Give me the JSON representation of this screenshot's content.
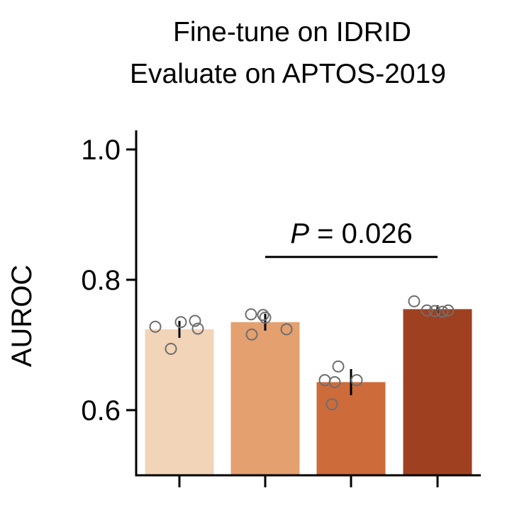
{
  "chart_data": {
    "type": "bar",
    "title_lines": [
      "Fine-tune on IDRID",
      "Evaluate on APTOS-2019"
    ],
    "ylabel": "AUROC",
    "xlabel": "",
    "ylim": [
      0.5,
      1.03
    ],
    "yticks": [
      0.6,
      0.8,
      1.0
    ],
    "ytick_labels": [
      "0.6",
      "0.8",
      "1.0"
    ],
    "categories": [
      "",
      "",
      "",
      ""
    ],
    "values": [
      0.724,
      0.735,
      0.643,
      0.755
    ],
    "colors": [
      "#f2d4b8",
      "#e4a06f",
      "#cd6b3b",
      "#9f4121"
    ],
    "error": [
      [
        0.711,
        0.737
      ],
      [
        0.722,
        0.748
      ],
      [
        0.623,
        0.663
      ],
      [
        0.749,
        0.761
      ]
    ],
    "points": [
      [
        0.728,
        0.694,
        0.735,
        0.737,
        0.725
      ],
      [
        0.747,
        0.716,
        0.746,
        0.742,
        0.724
      ],
      [
        0.646,
        0.609,
        0.643,
        0.667,
        0.646
      ],
      [
        0.767,
        0.753,
        0.752,
        0.751,
        0.753
      ]
    ],
    "annotation": {
      "label_italic": "P",
      "label_rest": " = 0.026",
      "from_bar": 1,
      "to_bar": 3,
      "y": 0.835
    },
    "grid": false,
    "legend": "none"
  }
}
